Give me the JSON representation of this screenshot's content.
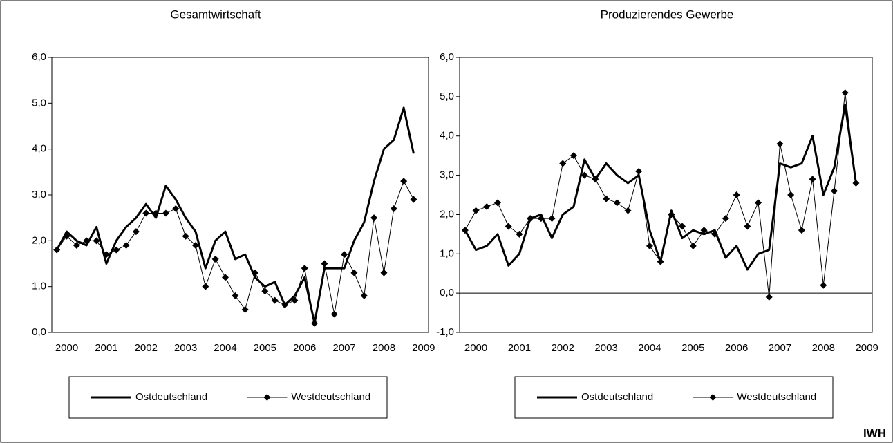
{
  "chart_data": [
    {
      "type": "line",
      "title": "Gesamtwirtschaft",
      "categories": [
        null,
        "2000",
        null,
        null,
        null,
        "2001",
        null,
        null,
        null,
        "2002",
        null,
        null,
        null,
        "2003",
        null,
        null,
        null,
        "2004",
        null,
        null,
        null,
        "2005",
        null,
        null,
        null,
        "2006",
        null,
        null,
        null,
        "2007",
        null,
        null,
        null,
        "2008",
        null,
        null,
        null,
        "2009"
      ],
      "series": [
        {
          "name": "Ostdeutschland",
          "color": "#000000",
          "line_width": 3,
          "marker": "none",
          "values": [
            1.8,
            2.2,
            2.0,
            1.9,
            2.3,
            1.5,
            2.0,
            2.3,
            2.5,
            2.8,
            2.5,
            3.2,
            2.9,
            2.5,
            2.2,
            1.4,
            2.0,
            2.2,
            1.6,
            1.7,
            1.2,
            1.0,
            1.1,
            0.6,
            0.8,
            1.2,
            0.2,
            1.4,
            1.4,
            1.4,
            2.0,
            2.4,
            3.3,
            4.0,
            4.2,
            4.9,
            3.9,
            null
          ]
        },
        {
          "name": "Westdeutschland",
          "color": "#000000",
          "line_width": 1,
          "marker": "diamond",
          "values": [
            1.8,
            2.1,
            1.9,
            2.0,
            2.0,
            1.7,
            1.8,
            1.9,
            2.2,
            2.6,
            2.6,
            2.6,
            2.7,
            2.1,
            1.9,
            1.0,
            1.6,
            1.2,
            0.8,
            0.5,
            1.3,
            0.9,
            0.7,
            0.6,
            0.7,
            1.4,
            0.2,
            1.5,
            0.4,
            1.7,
            1.3,
            0.8,
            2.5,
            1.3,
            2.7,
            3.3,
            2.9,
            null
          ]
        }
      ],
      "ylim": [
        0,
        6
      ],
      "yticks": [
        {
          "value": 0,
          "label": "0,0"
        },
        {
          "value": 1,
          "label": "1,0"
        },
        {
          "value": 2,
          "label": "2,0"
        },
        {
          "value": 3,
          "label": "3,0"
        },
        {
          "value": 4,
          "label": "4,0"
        },
        {
          "value": 5,
          "label": "5,0"
        },
        {
          "value": 6,
          "label": "6,0"
        }
      ],
      "grid": false,
      "legend": "bottom"
    },
    {
      "type": "line",
      "title": "Produzierendes Gewerbe",
      "categories": [
        null,
        "2000",
        null,
        null,
        null,
        "2001",
        null,
        null,
        null,
        "2002",
        null,
        null,
        null,
        "2003",
        null,
        null,
        null,
        "2004",
        null,
        null,
        null,
        "2005",
        null,
        null,
        null,
        "2006",
        null,
        null,
        null,
        "2007",
        null,
        null,
        null,
        "2008",
        null,
        null,
        null,
        "2009"
      ],
      "series": [
        {
          "name": "Ostdeutschland",
          "color": "#000000",
          "line_width": 3,
          "marker": "none",
          "values": [
            1.6,
            1.1,
            1.2,
            1.5,
            0.7,
            1.0,
            1.9,
            2.0,
            1.4,
            2.0,
            2.2,
            3.4,
            2.9,
            3.3,
            3.0,
            2.8,
            3.0,
            1.6,
            0.8,
            2.1,
            1.4,
            1.6,
            1.5,
            1.6,
            0.9,
            1.2,
            0.6,
            1.0,
            1.1,
            3.3,
            3.2,
            3.3,
            4.0,
            2.5,
            3.2,
            4.8,
            2.8,
            null
          ]
        },
        {
          "name": "Westdeutschland",
          "color": "#000000",
          "line_width": 1,
          "marker": "diamond",
          "values": [
            1.6,
            2.1,
            2.2,
            2.3,
            1.7,
            1.5,
            1.9,
            1.9,
            1.9,
            3.3,
            3.5,
            3.0,
            2.9,
            2.4,
            2.3,
            2.1,
            3.1,
            1.2,
            0.8,
            2.0,
            1.7,
            1.2,
            1.6,
            1.5,
            1.9,
            2.5,
            1.7,
            2.3,
            -0.1,
            3.8,
            2.5,
            1.6,
            2.9,
            0.2,
            2.6,
            5.1,
            2.8,
            null
          ]
        }
      ],
      "ylim": [
        -1,
        6
      ],
      "yticks": [
        {
          "value": -1,
          "label": "-1,0"
        },
        {
          "value": 0,
          "label": "0,0"
        },
        {
          "value": 1,
          "label": "1,0"
        },
        {
          "value": 2,
          "label": "2,0"
        },
        {
          "value": 3,
          "label": "3,0"
        },
        {
          "value": 4,
          "label": "4,0"
        },
        {
          "value": 5,
          "label": "5,0"
        },
        {
          "value": 6,
          "label": "6,0"
        }
      ],
      "grid": false,
      "legend": "bottom"
    }
  ],
  "source_label": "IWH"
}
